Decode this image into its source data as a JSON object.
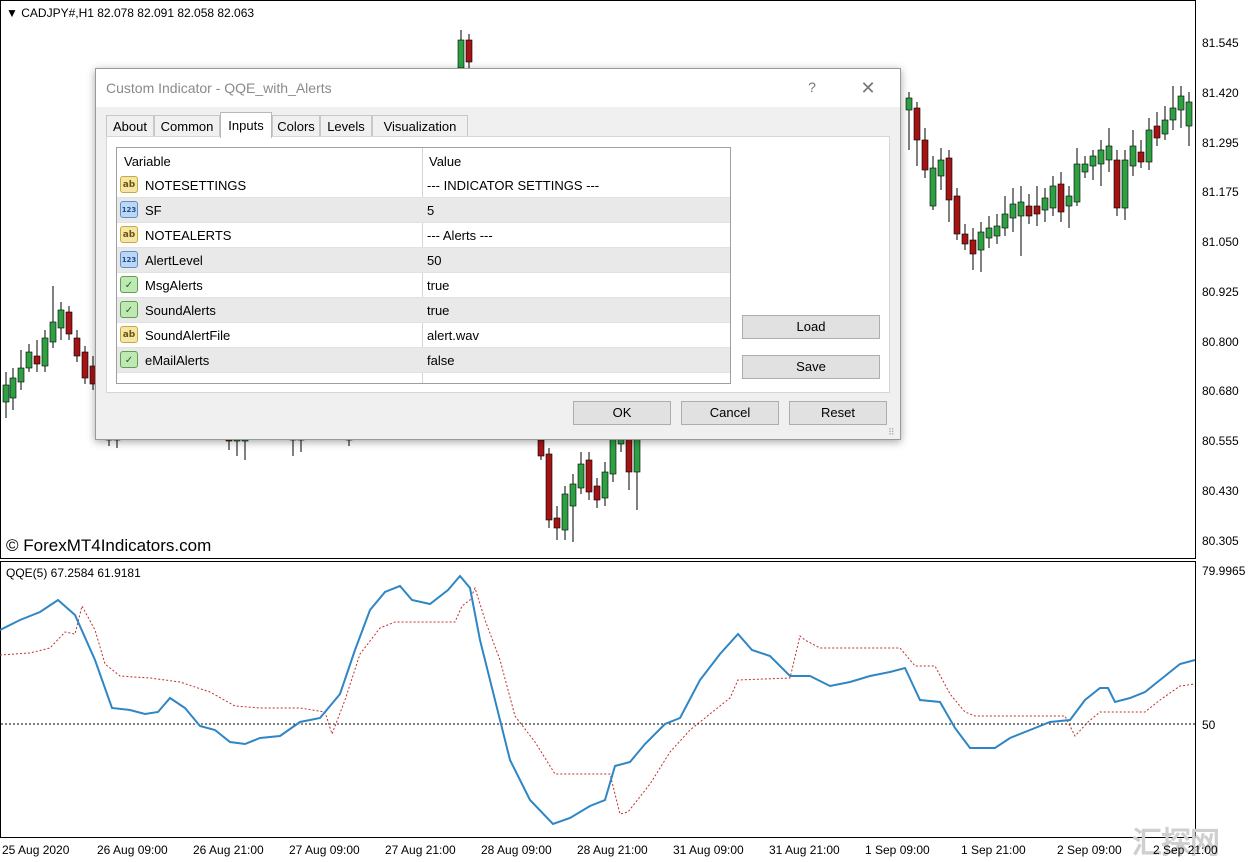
{
  "chart": {
    "symbol_header": "CADJPY#,H1  82.078 82.091 82.058 82.063",
    "indicator_header": "QQE(5) 67.2584 61.9181",
    "watermark": "© ForexMT4Indicators.com",
    "brand_mark": "汇探网",
    "price_labels": [
      "81.545",
      "81.420",
      "81.295",
      "81.175",
      "81.050",
      "80.925",
      "80.800",
      "80.680",
      "80.555",
      "80.430",
      "80.305"
    ],
    "indicator_labels": [
      "79.9965",
      "50"
    ],
    "time_labels": [
      "25 Aug 2020",
      "26 Aug 09:00",
      "26 Aug 21:00",
      "27 Aug 09:00",
      "27 Aug 21:00",
      "28 Aug 09:00",
      "28 Aug 21:00",
      "31 Aug 09:00",
      "31 Aug 21:00",
      "1 Sep 09:00",
      "1 Sep 21:00",
      "2 Sep 09:00",
      "2 Sep 21:00"
    ],
    "colors": {
      "bull": "#2ea043",
      "bear": "#a31515",
      "qqe_line": "#2f86c5",
      "signal_line": "#c0302b"
    }
  },
  "dialog": {
    "title": "Custom Indicator - QQE_with_Alerts",
    "help_label": "?",
    "close_label": "✕",
    "tabs": [
      "About",
      "Common",
      "Inputs",
      "Colors",
      "Levels",
      "Visualization"
    ],
    "active_tab": "Inputs",
    "grid": {
      "col_variable": "Variable",
      "col_value": "Value",
      "rows": [
        {
          "type": "string",
          "name": "NOTESETTINGS",
          "value": "--- INDICATOR SETTINGS ---"
        },
        {
          "type": "int",
          "name": "SF",
          "value": "5"
        },
        {
          "type": "string",
          "name": "NOTEALERTS",
          "value": "--- Alerts ---"
        },
        {
          "type": "int",
          "name": "AlertLevel",
          "value": "50"
        },
        {
          "type": "bool",
          "name": "MsgAlerts",
          "value": "true"
        },
        {
          "type": "bool",
          "name": "SoundAlerts",
          "value": "true"
        },
        {
          "type": "string",
          "name": "SoundAlertFile",
          "value": "alert.wav"
        },
        {
          "type": "bool",
          "name": "eMailAlerts",
          "value": "false"
        }
      ]
    },
    "icon_glyphs": {
      "string": "ab",
      "int": "123",
      "bool": "✓"
    },
    "buttons": {
      "load": "Load",
      "save": "Save",
      "ok": "OK",
      "cancel": "Cancel",
      "reset": "Reset"
    }
  }
}
